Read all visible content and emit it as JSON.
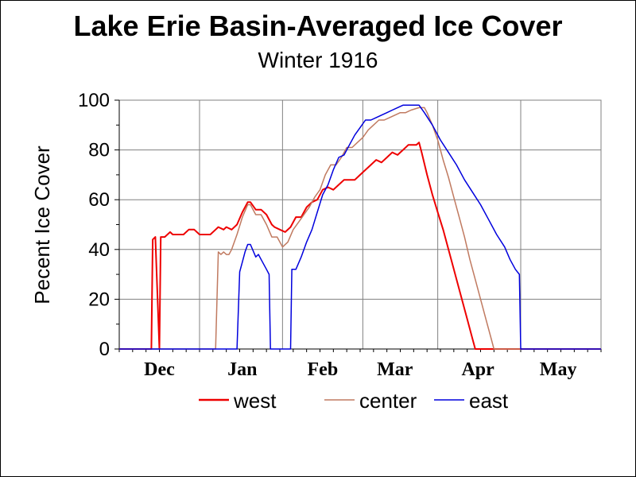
{
  "chart_data": {
    "type": "line",
    "title": "Lake Erie Basin-Averaged Ice Cover",
    "subtitle": "Winter 1916",
    "ylabel": "Pecent Ice Cover",
    "xlabel": "",
    "ylim": [
      0,
      100
    ],
    "xlim": [
      0,
      180
    ],
    "yticks": [
      0,
      20,
      40,
      60,
      80,
      100
    ],
    "month_labels": [
      "Dec",
      "Jan",
      "Feb",
      "Mar",
      "Apr",
      "May"
    ],
    "month_label_positions": [
      15,
      46,
      76,
      103,
      134,
      164
    ],
    "gridlines_x": [
      30,
      61,
      91,
      119,
      150,
      180
    ],
    "grid": true,
    "legend_position": "bottom",
    "series": [
      {
        "name": "west",
        "color": "#ee0000",
        "points": [
          [
            0,
            0
          ],
          [
            12,
            0
          ],
          [
            12.5,
            44
          ],
          [
            13.5,
            45
          ],
          [
            15,
            0
          ],
          [
            15.5,
            45
          ],
          [
            17,
            45
          ],
          [
            19,
            47
          ],
          [
            20,
            46
          ],
          [
            24,
            46
          ],
          [
            26,
            48
          ],
          [
            28,
            48
          ],
          [
            30,
            46
          ],
          [
            34,
            46
          ],
          [
            36,
            48
          ],
          [
            37,
            49
          ],
          [
            39,
            48
          ],
          [
            40,
            49
          ],
          [
            42,
            48
          ],
          [
            44,
            50
          ],
          [
            46,
            55
          ],
          [
            48,
            59
          ],
          [
            49,
            59
          ],
          [
            51,
            56
          ],
          [
            53,
            56
          ],
          [
            55,
            54
          ],
          [
            57,
            50
          ],
          [
            58,
            49
          ],
          [
            60,
            48
          ],
          [
            62,
            47
          ],
          [
            64,
            49
          ],
          [
            66,
            53
          ],
          [
            68,
            53
          ],
          [
            70,
            57
          ],
          [
            72,
            59
          ],
          [
            74,
            60
          ],
          [
            76,
            64
          ],
          [
            78,
            65
          ],
          [
            80,
            64
          ],
          [
            82,
            66
          ],
          [
            84,
            68
          ],
          [
            88,
            68
          ],
          [
            90,
            70
          ],
          [
            94,
            74
          ],
          [
            96,
            76
          ],
          [
            98,
            75
          ],
          [
            100,
            77
          ],
          [
            102,
            79
          ],
          [
            104,
            78
          ],
          [
            106,
            80
          ],
          [
            108,
            82
          ],
          [
            111,
            82
          ],
          [
            112,
            83
          ],
          [
            113,
            79
          ],
          [
            115,
            70
          ],
          [
            117,
            62
          ],
          [
            119,
            55
          ],
          [
            121,
            48
          ],
          [
            124,
            36
          ],
          [
            127,
            24
          ],
          [
            130,
            12
          ],
          [
            132,
            4
          ],
          [
            133,
            0
          ],
          [
            180,
            0
          ]
        ]
      },
      {
        "name": "center",
        "color": "#c07a60",
        "points": [
          [
            0,
            0
          ],
          [
            36,
            0
          ],
          [
            37,
            39
          ],
          [
            38,
            38
          ],
          [
            39,
            39
          ],
          [
            40,
            38
          ],
          [
            41,
            38
          ],
          [
            42,
            40
          ],
          [
            44,
            46
          ],
          [
            46,
            53
          ],
          [
            48,
            58
          ],
          [
            49,
            58
          ],
          [
            51,
            54
          ],
          [
            53,
            54
          ],
          [
            55,
            50
          ],
          [
            57,
            45
          ],
          [
            59,
            45
          ],
          [
            61,
            41
          ],
          [
            63,
            43
          ],
          [
            65,
            48
          ],
          [
            67,
            51
          ],
          [
            69,
            54
          ],
          [
            71,
            57
          ],
          [
            73,
            61
          ],
          [
            75,
            64
          ],
          [
            77,
            70
          ],
          [
            79,
            74
          ],
          [
            81,
            74
          ],
          [
            83,
            77
          ],
          [
            85,
            81
          ],
          [
            87,
            81
          ],
          [
            89,
            83
          ],
          [
            91,
            85
          ],
          [
            93,
            88
          ],
          [
            95,
            90
          ],
          [
            97,
            92
          ],
          [
            99,
            92
          ],
          [
            101,
            93
          ],
          [
            103,
            94
          ],
          [
            105,
            95
          ],
          [
            107,
            95
          ],
          [
            109,
            96
          ],
          [
            112,
            97
          ],
          [
            114,
            97
          ],
          [
            115,
            95
          ],
          [
            117,
            90
          ],
          [
            119,
            84
          ],
          [
            121,
            76
          ],
          [
            123,
            69
          ],
          [
            125,
            61
          ],
          [
            127,
            53
          ],
          [
            129,
            45
          ],
          [
            131,
            36
          ],
          [
            133,
            28
          ],
          [
            135,
            20
          ],
          [
            137,
            12
          ],
          [
            139,
            4
          ],
          [
            140,
            0
          ],
          [
            180,
            0
          ]
        ]
      },
      {
        "name": "east",
        "color": "#0000dd",
        "points": [
          [
            0,
            0
          ],
          [
            44,
            0
          ],
          [
            45,
            31
          ],
          [
            46,
            35
          ],
          [
            47,
            39
          ],
          [
            48,
            42
          ],
          [
            49,
            42
          ],
          [
            51,
            37
          ],
          [
            52,
            38
          ],
          [
            53,
            36
          ],
          [
            55,
            32
          ],
          [
            56,
            30
          ],
          [
            56.5,
            0
          ],
          [
            64,
            0
          ],
          [
            64.5,
            32
          ],
          [
            66,
            32
          ],
          [
            68,
            37
          ],
          [
            70,
            43
          ],
          [
            72,
            48
          ],
          [
            74,
            55
          ],
          [
            76,
            62
          ],
          [
            78,
            66
          ],
          [
            80,
            72
          ],
          [
            82,
            77
          ],
          [
            84,
            78
          ],
          [
            86,
            82
          ],
          [
            88,
            86
          ],
          [
            90,
            89
          ],
          [
            92,
            92
          ],
          [
            94,
            92
          ],
          [
            96,
            93
          ],
          [
            98,
            94
          ],
          [
            100,
            95
          ],
          [
            102,
            96
          ],
          [
            104,
            97
          ],
          [
            106,
            98
          ],
          [
            110,
            98
          ],
          [
            112,
            98
          ],
          [
            114,
            95
          ],
          [
            117,
            90
          ],
          [
            120,
            84
          ],
          [
            123,
            79
          ],
          [
            126,
            74
          ],
          [
            129,
            68
          ],
          [
            132,
            63
          ],
          [
            135,
            58
          ],
          [
            138,
            52
          ],
          [
            141,
            46
          ],
          [
            144,
            41
          ],
          [
            146,
            36
          ],
          [
            148,
            32
          ],
          [
            149.5,
            30
          ],
          [
            150,
            0
          ],
          [
            180,
            0
          ]
        ]
      }
    ]
  }
}
